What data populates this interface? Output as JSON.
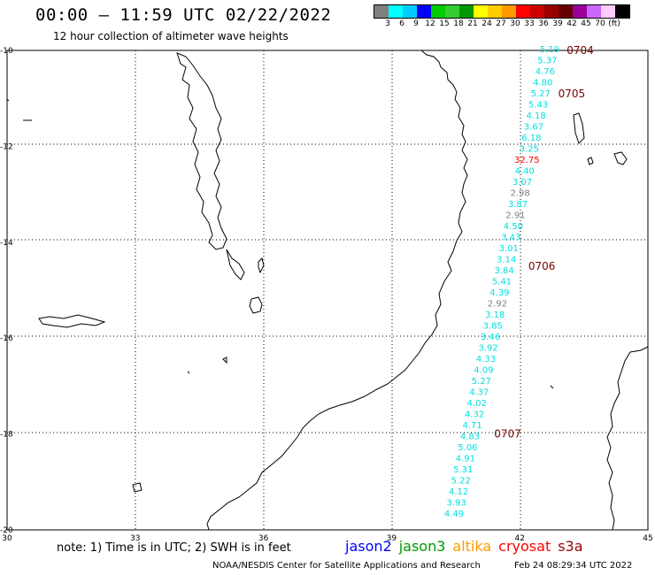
{
  "header": {
    "title": "00:00 – 11:59 UTC 02/22/2022",
    "subtitle": "12 hour collection of altimeter wave heights"
  },
  "legend": {
    "colors": [
      "#808080",
      "#00ffff",
      "#00ccff",
      "#0000ff",
      "#00cc00",
      "#33cc33",
      "#009900",
      "#ffff00",
      "#ffcc00",
      "#ff9900",
      "#ff0000",
      "#cc0000",
      "#990000",
      "#660000",
      "#990099",
      "#cc66ff",
      "#ffccff",
      "#000000"
    ],
    "labels": [
      "3",
      "6",
      "9",
      "12",
      "15",
      "18",
      "21",
      "24",
      "27",
      "30",
      "33",
      "36",
      "39",
      "42",
      "45",
      "70",
      "(ft)"
    ]
  },
  "axes": {
    "lat_labels": [
      "-10",
      "-12",
      "-14",
      "-16",
      "-18",
      "-20"
    ],
    "lon_labels": [
      "30",
      "33",
      "36",
      "39",
      "42",
      "45"
    ]
  },
  "passes": [
    {
      "id": "0704",
      "lat": -10.0,
      "lon": 43.1
    },
    {
      "id": "0705",
      "lat": -10.9,
      "lon": 42.9
    },
    {
      "id": "0706",
      "lat": -14.5,
      "lon": 42.2
    },
    {
      "id": "0707",
      "lat": -18.0,
      "lon": 41.4
    }
  ],
  "observations": [
    {
      "v": "5.19",
      "c": "#00e0e0"
    },
    {
      "v": "5.37",
      "c": "#00e0e0"
    },
    {
      "v": "4.76",
      "c": "#00e0e0"
    },
    {
      "v": "4.80",
      "c": "#00e0e0"
    },
    {
      "v": "5.27",
      "c": "#00e0e0"
    },
    {
      "v": "5.43",
      "c": "#00e0e0"
    },
    {
      "v": "4.18",
      "c": "#00e0e0"
    },
    {
      "v": "3.67",
      "c": "#00e0e0"
    },
    {
      "v": "6.18",
      "c": "#00e0e0"
    },
    {
      "v": "3.25",
      "c": "#00e0e0"
    },
    {
      "v": "32.75",
      "c": "#ff0000"
    },
    {
      "v": "4.40",
      "c": "#00e0e0"
    },
    {
      "v": "3.07",
      "c": "#00e0e0"
    },
    {
      "v": "2.98",
      "c": "#808080"
    },
    {
      "v": "3.87",
      "c": "#00e0e0"
    },
    {
      "v": "2.91",
      "c": "#808080"
    },
    {
      "v": "4.50",
      "c": "#00e0e0"
    },
    {
      "v": "3.43",
      "c": "#00e0e0"
    },
    {
      "v": "3.01",
      "c": "#00e0e0"
    },
    {
      "v": "3.14",
      "c": "#00e0e0"
    },
    {
      "v": "3.84",
      "c": "#00e0e0"
    },
    {
      "v": "5.41",
      "c": "#00e0e0"
    },
    {
      "v": "4.39",
      "c": "#00e0e0"
    },
    {
      "v": "2.92",
      "c": "#808080"
    },
    {
      "v": "3.18",
      "c": "#00e0e0"
    },
    {
      "v": "3.85",
      "c": "#00e0e0"
    },
    {
      "v": "3.46",
      "c": "#00e0e0"
    },
    {
      "v": "3.92",
      "c": "#00e0e0"
    },
    {
      "v": "4.33",
      "c": "#00e0e0"
    },
    {
      "v": "4.09",
      "c": "#00e0e0"
    },
    {
      "v": "5.27",
      "c": "#00e0e0"
    },
    {
      "v": "4.37",
      "c": "#00e0e0"
    },
    {
      "v": "4.02",
      "c": "#00e0e0"
    },
    {
      "v": "4.32",
      "c": "#00e0e0"
    },
    {
      "v": "4.71",
      "c": "#00e0e0"
    },
    {
      "v": "4.83",
      "c": "#00e0e0"
    },
    {
      "v": "5.06",
      "c": "#00e0e0"
    },
    {
      "v": "4.91",
      "c": "#00e0e0"
    },
    {
      "v": "5.31",
      "c": "#00e0e0"
    },
    {
      "v": "5.22",
      "c": "#00e0e0"
    },
    {
      "v": "4.12",
      "c": "#00e0e0"
    },
    {
      "v": "3.93",
      "c": "#00e0e0"
    },
    {
      "v": "4.49",
      "c": "#00e0e0"
    }
  ],
  "footer": {
    "note": "note:  1) Time is in UTC; 2) SWH is in feet",
    "satellites": [
      {
        "name": "jason2",
        "color": "#0000ff"
      },
      {
        "name": "jason3",
        "color": "#009900"
      },
      {
        "name": "altika",
        "color": "#ff9900"
      },
      {
        "name": "cryosat",
        "color": "#ff0000"
      },
      {
        "name": "s3a",
        "color": "#990000"
      }
    ],
    "credit": "NOAA/NESDIS Center for Satellite Applications and Research",
    "timestamp": "Feb 24 08:29:34 UTC 2022"
  }
}
